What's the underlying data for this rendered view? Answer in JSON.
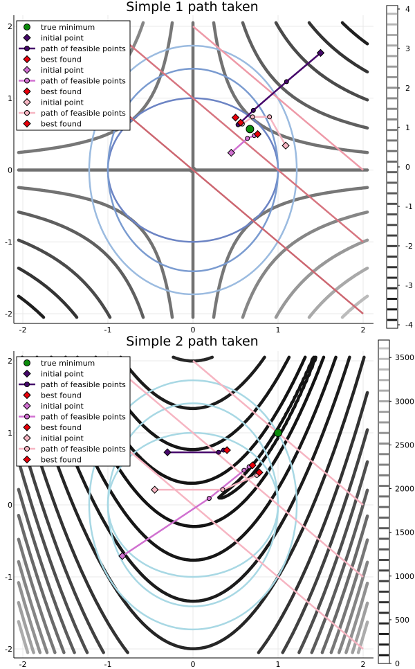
{
  "chart_data": [
    {
      "type": "line",
      "title": "Simple 1 path taken",
      "xlim": [
        -2,
        2
      ],
      "ylim": [
        -2,
        2
      ],
      "x_ticks": [
        "-2",
        "-1",
        "0",
        "1",
        "2"
      ],
      "y_ticks": [
        "-2",
        "-1",
        "0",
        "1",
        "2"
      ],
      "grid": true,
      "legend_position": "top-left",
      "contour": {
        "function": "x*y",
        "levels": [
          -4,
          -3,
          -2,
          -1,
          0,
          1,
          2,
          3,
          4
        ],
        "colormap": "grays-reversed"
      },
      "colorbar": {
        "ticks": [
          "4",
          "3",
          "2",
          "1",
          "0",
          "-1",
          "-2",
          "-3",
          "-4"
        ],
        "min": -4,
        "max": 4
      },
      "constraints": [
        {
          "kind": "ellipse",
          "rx": 1.0,
          "ry": 1.0,
          "color": "#6c84c4"
        },
        {
          "kind": "ellipse",
          "rx": 1.0,
          "ry": 1.41,
          "color": "#7a9bd0"
        },
        {
          "kind": "ellipse",
          "rx": 1.22,
          "ry": 1.73,
          "color": "#9bbbe0"
        },
        {
          "kind": "line",
          "sum": 0.0,
          "color": "#cc6670"
        },
        {
          "kind": "line",
          "sum": 1.0,
          "color": "#d77580"
        },
        {
          "kind": "line",
          "sum": 2.0,
          "color": "#ee9aa8"
        }
      ],
      "true_minimum": {
        "x": 0.67,
        "y": 0.57,
        "color": "#0b8a0b"
      },
      "series": [
        {
          "points": [
            [
              1.5,
              1.63
            ],
            [
              1.1,
              1.23
            ],
            [
              0.71,
              0.83
            ],
            [
              0.53,
              0.63
            ]
          ],
          "best": [
            0.5,
            0.73
          ],
          "color": "#46086b"
        },
        {
          "points": [
            [
              0.45,
              0.24
            ],
            [
              0.64,
              0.44
            ],
            [
              0.72,
              0.48
            ]
          ],
          "best": [
            0.76,
            0.5
          ],
          "color": "#d070d0"
        },
        {
          "points": [
            [
              1.09,
              0.34
            ],
            [
              0.9,
              0.74
            ],
            [
              0.7,
              0.74
            ],
            [
              0.58,
              0.64
            ]
          ],
          "best": [
            0.56,
            0.66
          ],
          "color": "#f6b5c2"
        }
      ],
      "legend": [
        "true minimum",
        "initial point",
        "path of feasible points",
        "best found",
        "initial point",
        "path of feasible points",
        "best found",
        "initial point",
        "path of feasible points",
        "best found"
      ]
    },
    {
      "type": "line",
      "title": "Simple 2 path taken",
      "xlim": [
        -2,
        2
      ],
      "ylim": [
        -2,
        2
      ],
      "x_ticks": [
        "-2",
        "-1",
        "0",
        "1",
        "2"
      ],
      "y_ticks": [
        "-2",
        "-1",
        "0",
        "1",
        "2"
      ],
      "grid": true,
      "legend_position": "top-left",
      "contour": {
        "function": "100*(y-x^2)^2+(1-x)^2",
        "levels": [
          0,
          250,
          500,
          750,
          1000,
          1250,
          1500,
          1750,
          2000,
          2250,
          2500,
          2750,
          3000,
          3250,
          3500
        ],
        "colormap": "grays-reversed"
      },
      "colorbar": {
        "ticks": [
          "3500",
          "3000",
          "2500",
          "2000",
          "1500",
          "1000",
          "500",
          "0"
        ],
        "min": 0,
        "max": 3700
      },
      "constraints": [
        {
          "kind": "ellipse",
          "rx": 1.0,
          "ry": 1.0,
          "color": "#a8d8e4"
        },
        {
          "kind": "ellipse",
          "rx": 1.0,
          "ry": 1.41,
          "color": "#a8d8e4"
        },
        {
          "kind": "ellipse",
          "rx": 1.22,
          "ry": 1.73,
          "color": "#a8d8e4"
        },
        {
          "kind": "line",
          "sum": 0.0,
          "color": "#f6b5c2"
        },
        {
          "kind": "line",
          "sum": 1.0,
          "color": "#f6b5c2"
        },
        {
          "kind": "line",
          "sum": 2.0,
          "color": "#f6b5c2"
        }
      ],
      "true_minimum": {
        "x": 1.0,
        "y": 1.0,
        "color": "#0b8a0b"
      },
      "series": [
        {
          "points": [
            [
              -0.3,
              0.73
            ],
            [
              0.3,
              0.73
            ],
            [
              0.36,
              0.76
            ]
          ],
          "best": [
            0.4,
            0.76
          ],
          "color": "#46086b"
        },
        {
          "points": [
            [
              -0.83,
              -0.71
            ],
            [
              0.19,
              0.09
            ],
            [
              0.6,
              0.48
            ],
            [
              0.66,
              0.53
            ]
          ],
          "best": [
            0.7,
            0.55
          ],
          "color": "#d070d0"
        },
        {
          "points": [
            [
              -0.45,
              0.21
            ],
            [
              0.35,
              0.21
            ],
            [
              0.75,
              0.41
            ]
          ],
          "best": [
            0.78,
            0.45
          ],
          "color": "#f6b5c2"
        }
      ],
      "legend": [
        "true minimum",
        "initial point",
        "path of feasible points",
        "best found",
        "initial point",
        "path of feasible points",
        "best found",
        "initial point",
        "path of feasible points",
        "best found"
      ]
    }
  ]
}
